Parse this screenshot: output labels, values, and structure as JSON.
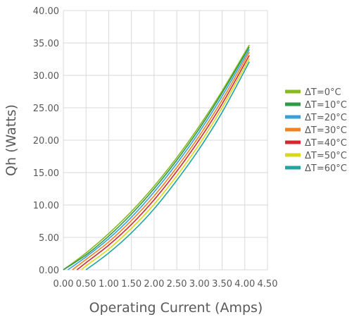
{
  "chart_data": {
    "type": "line",
    "title": "",
    "xlabel": "Operating Current (Amps)",
    "ylabel": "Qh (Watts)",
    "xlim": [
      0,
      4.5
    ],
    "ylim": [
      0,
      40
    ],
    "x_ticks": [
      "0.00",
      "0.50",
      "1.00",
      "1.50",
      "2.00",
      "2.50",
      "3.00",
      "3.50",
      "4.00",
      "4.50"
    ],
    "y_ticks": [
      "0.00",
      "5.00",
      "10.00",
      "15.00",
      "20.00",
      "25.00",
      "30.00",
      "35.00",
      "40.00"
    ],
    "grid": true,
    "legend_position": "right",
    "series": [
      {
        "name": "ΔT=0°C",
        "color": "#8ab820",
        "x": [
          0,
          0.5,
          1.0,
          1.5,
          2.0,
          2.5,
          3.0,
          3.5,
          4.1
        ],
        "y": [
          0,
          2.6,
          5.6,
          9.0,
          12.9,
          17.3,
          22.2,
          27.6,
          34.7
        ]
      },
      {
        "name": "ΔT=10°C",
        "color": "#2e9a45",
        "x": [
          0,
          0.5,
          1.0,
          1.5,
          2.0,
          2.5,
          3.0,
          3.5,
          4.1
        ],
        "y": [
          0,
          2.3,
          5.2,
          8.6,
          12.5,
          16.9,
          21.8,
          27.3,
          34.4
        ]
      },
      {
        "name": "ΔT=20°C",
        "color": "#3aa0dc",
        "x": [
          0.1,
          0.5,
          1.0,
          1.5,
          2.0,
          2.5,
          3.0,
          3.5,
          4.1
        ],
        "y": [
          0,
          2.0,
          4.8,
          8.1,
          12.0,
          16.4,
          21.3,
          26.8,
          34.0
        ]
      },
      {
        "name": "ΔT=30°C",
        "color": "#f08020",
        "x": [
          0.2,
          0.5,
          1.0,
          1.5,
          2.0,
          2.5,
          3.0,
          3.5,
          4.1
        ],
        "y": [
          0,
          1.6,
          4.3,
          7.6,
          11.4,
          15.8,
          20.7,
          26.2,
          33.6
        ]
      },
      {
        "name": "ΔT=40°C",
        "color": "#d8262e",
        "x": [
          0.3,
          0.5,
          1.0,
          1.5,
          2.0,
          2.5,
          3.0,
          3.5,
          4.1
        ],
        "y": [
          0,
          1.1,
          3.8,
          7.0,
          10.8,
          15.2,
          20.1,
          25.6,
          33.1
        ]
      },
      {
        "name": "ΔT=50°C",
        "color": "#d9d91a",
        "x": [
          0.4,
          0.5,
          1.0,
          1.5,
          2.0,
          2.5,
          3.0,
          3.5,
          4.1
        ],
        "y": [
          0,
          0.6,
          3.2,
          6.4,
          10.1,
          14.5,
          19.4,
          25.0,
          32.6
        ]
      },
      {
        "name": "ΔT=60°C",
        "color": "#20a5a0",
        "x": [
          0.5,
          1.0,
          1.5,
          2.0,
          2.5,
          3.0,
          3.5,
          4.1
        ],
        "y": [
          0,
          2.6,
          5.7,
          9.4,
          13.8,
          18.7,
          24.3,
          32.1
        ]
      }
    ]
  }
}
